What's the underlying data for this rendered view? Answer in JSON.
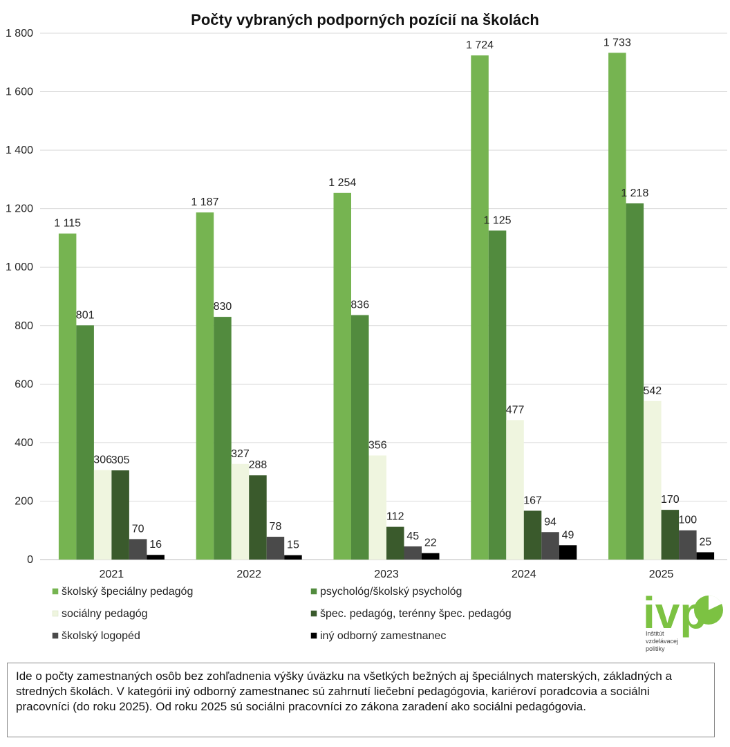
{
  "chart_data": {
    "type": "bar",
    "title": "Počty vybraných podporných pozícií na školách",
    "categories": [
      "2021",
      "2022",
      "2023",
      "2024",
      "2025"
    ],
    "ylim": [
      0,
      1800
    ],
    "yticks": [
      0,
      200,
      400,
      600,
      800,
      1000,
      1200,
      1400,
      1600,
      1800
    ],
    "ytick_labels": [
      "0",
      "200",
      "400",
      "600",
      "800",
      "1 000",
      "1 200",
      "1 400",
      "1 600",
      "1 800"
    ],
    "grid": true,
    "legend_position": "bottom",
    "series": [
      {
        "name": "školský špeciálny pedagóg",
        "color": "#76b451",
        "values": [
          1115,
          1187,
          1254,
          1724,
          1733
        ],
        "labels": [
          "1 115",
          "1 187",
          "1 254",
          "1 724",
          "1 733"
        ]
      },
      {
        "name": "psychológ/školský psychológ",
        "color": "#528b3e",
        "values": [
          801,
          830,
          836,
          1125,
          1218
        ],
        "labels": [
          "801",
          "830",
          "836",
          "1 125",
          "1 218"
        ]
      },
      {
        "name": "sociálny pedagóg",
        "color": "#eff5df",
        "values": [
          306,
          327,
          356,
          477,
          542
        ],
        "labels": [
          "306",
          "327",
          "356",
          "477",
          "542"
        ]
      },
      {
        "name": "špec. pedagóg, terénny špec. pedagóg",
        "color": "#3a5a2c",
        "values": [
          305,
          288,
          112,
          167,
          170
        ],
        "labels": [
          "305",
          "288",
          "112",
          "167",
          "170"
        ]
      },
      {
        "name": "školský logopéd",
        "color": "#4a4a4a",
        "values": [
          70,
          78,
          45,
          94,
          100
        ],
        "labels": [
          "70",
          "78",
          "45",
          "94",
          "100"
        ]
      },
      {
        "name": "iný odborný zamestnanec",
        "color": "#000000",
        "values": [
          16,
          15,
          22,
          49,
          25
        ],
        "labels": [
          "16",
          "15",
          "22",
          "49",
          "25"
        ]
      }
    ]
  },
  "logo": {
    "letters": "ivp",
    "line1": "Inštitút",
    "line2": "vzdelávacej",
    "line3": "politiky",
    "color": "#7cc242"
  },
  "note": "Ide o počty zamestnaných osôb bez zohľadnenia výšky úväzku na všetkých bežných aj špeciálnych materských, základných a stredných školách. V kategórii iný odborný zamestnanec sú zahrnutí liečební pedagógovia, kariéroví poradcovia a sociálni pracovníci (do roku 2025). Od roku 2025 sú sociálni pracovníci zo zákona zaradení ako sociálni pedagógovia."
}
